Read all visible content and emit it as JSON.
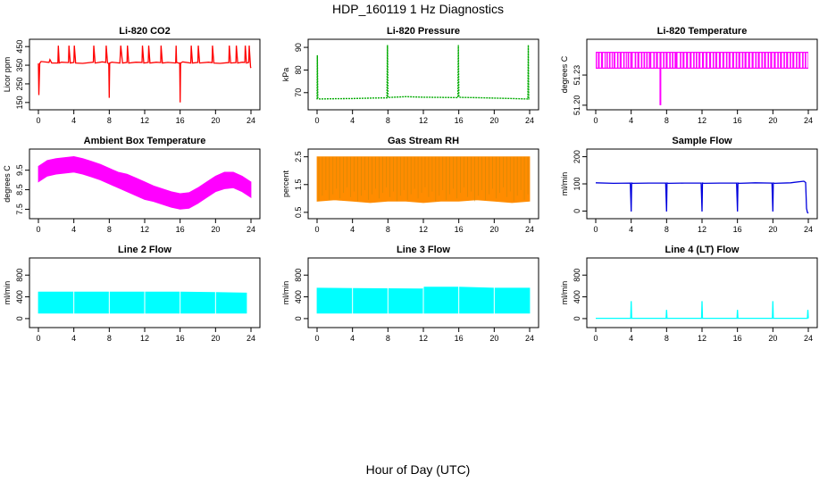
{
  "figure": {
    "title": "HDP_160119  1 Hz Diagnostics",
    "xlabel": "Hour of Day (UTC)"
  },
  "chart_data": [
    {
      "type": "line",
      "title": "Li-820 CO2",
      "ylabel": "Licor ppm",
      "color": "#ff0000",
      "xlim": [
        0,
        24
      ],
      "ylim": [
        130,
        470
      ],
      "x_ticks": [
        0,
        4,
        8,
        12,
        16,
        20,
        24
      ],
      "y_ticks": [
        150,
        250,
        350,
        450
      ],
      "series": [
        {
          "x": [
            0,
            0.05,
            0.15,
            0.3,
            1.2,
            1.3,
            1.5,
            2.2,
            2.25,
            2.35,
            2.6,
            3.4,
            3.45,
            3.6,
            4.0,
            4.05,
            4.2,
            5.0,
            6.2,
            6.25,
            6.4,
            7.2,
            7.6,
            7.65,
            7.8,
            7.9,
            7.95,
            8.0,
            8.05,
            8.3,
            9.2,
            9.3,
            9.5,
            10.0,
            10.05,
            10.2,
            11.0,
            11.7,
            11.75,
            11.9,
            12.4,
            12.45,
            12.6,
            13.3,
            13.8,
            13.85,
            14.0,
            14.6,
            15.5,
            15.55,
            15.6,
            15.8,
            15.95,
            16.0,
            16.05,
            16.3,
            17.2,
            17.25,
            17.4,
            18.0,
            18.05,
            18.2,
            19.2,
            19.6,
            19.65,
            19.8,
            20.5,
            21.5,
            21.55,
            21.7,
            22.3,
            22.35,
            22.5,
            23.0,
            23.3,
            23.35,
            23.5,
            23.75,
            23.8,
            23.95,
            24.0
          ],
          "y": [
            360,
            190,
            360,
            370,
            365,
            380,
            362,
            362,
            455,
            362,
            366,
            364,
            455,
            362,
            365,
            455,
            362,
            360,
            366,
            455,
            362,
            368,
            365,
            455,
            362,
            360,
            360,
            175,
            362,
            366,
            362,
            455,
            362,
            365,
            455,
            362,
            366,
            365,
            455,
            362,
            365,
            455,
            362,
            366,
            364,
            455,
            362,
            365,
            362,
            455,
            365,
            362,
            362,
            150,
            362,
            368,
            362,
            455,
            362,
            365,
            455,
            362,
            366,
            364,
            455,
            362,
            360,
            364,
            455,
            362,
            364,
            455,
            362,
            366,
            365,
            455,
            362,
            365,
            455,
            340,
            335
          ]
        }
      ]
    },
    {
      "type": "line",
      "title": "Li-820 Pressure",
      "ylabel": "kPa",
      "color": "#00aa00",
      "xlim": [
        0,
        24
      ],
      "ylim": [
        64,
        92
      ],
      "x_ticks": [
        0,
        4,
        8,
        12,
        16,
        20,
        24
      ],
      "y_ticks": [
        70,
        80,
        90
      ],
      "series": [
        {
          "x": [
            0,
            0.03,
            0.08,
            0.3,
            2,
            4,
            6,
            7.9,
            7.95,
            8.0,
            8.05,
            8.2,
            10,
            12,
            14,
            15.9,
            15.95,
            16.0,
            16.05,
            16.2,
            18,
            20,
            22,
            23.8,
            23.85,
            23.9,
            24
          ],
          "y": [
            67,
            86.5,
            67.5,
            67.2,
            67.3,
            67.4,
            67.6,
            67.7,
            91,
            68,
            67.8,
            67.9,
            68.2,
            68.0,
            67.9,
            67.8,
            91,
            68.2,
            68.1,
            67.9,
            67.8,
            67.6,
            67.4,
            67.2,
            91,
            67.2,
            67.1
          ]
        }
      ]
    },
    {
      "type": "line",
      "title": "Li-820 Temperature",
      "ylabel": "degrees C",
      "color": "#ff00ff",
      "xlim": [
        0,
        24
      ],
      "ylim": [
        51.199,
        51.262
      ],
      "x_ticks": [
        0,
        4,
        8,
        12,
        16,
        20,
        24
      ],
      "y_ticks": [
        51.2,
        51.23
      ],
      "y_tick_labels": [
        "51.20",
        "51.23"
      ],
      "levels": [
        51.2368,
        51.2526
      ],
      "dip": {
        "x": 7.3,
        "y": 51.2
      },
      "switch_hours": [
        0.0,
        0.25,
        0.6,
        1.0,
        1.2,
        1.5,
        1.8,
        2.0,
        2.4,
        2.7,
        3.1,
        3.4,
        3.6,
        3.9,
        4.4,
        4.7,
        5.1,
        5.4,
        5.7,
        6.0,
        6.5,
        6.8,
        7.2,
        7.6,
        7.9,
        8.3,
        8.6,
        8.9,
        9.5,
        9.8,
        10.2,
        10.6,
        11.0,
        11.3,
        11.6,
        12.0,
        12.4,
        12.8,
        13.2,
        13.5,
        13.9,
        14.3,
        14.7,
        15.0,
        15.4,
        15.8,
        16.1,
        16.5,
        16.8,
        17.2,
        17.6,
        18.0,
        18.3,
        18.7,
        19.0,
        19.4,
        19.7,
        20.1,
        20.5,
        20.8,
        21.2,
        21.5,
        21.9,
        22.2,
        22.6,
        22.9,
        23.3,
        23.6,
        23.9
      ]
    },
    {
      "type": "area",
      "title": "Ambient Box Temperature",
      "ylabel": "degrees C",
      "color": "#ff00ff",
      "xlim": [
        0,
        24
      ],
      "ylim": [
        7.2,
        10.4
      ],
      "x_ticks": [
        0,
        4,
        8,
        12,
        16,
        20,
        24
      ],
      "y_ticks": [
        7.5,
        8.5,
        9.5
      ],
      "series": [
        {
          "x": [
            0,
            1,
            2,
            3,
            4,
            5,
            6,
            7,
            8,
            9,
            10,
            11,
            12,
            13,
            14,
            15,
            16,
            17,
            18,
            19,
            20,
            21,
            22,
            23,
            24
          ],
          "upper": [
            9.7,
            10.0,
            10.1,
            10.15,
            10.2,
            10.1,
            9.95,
            9.8,
            9.6,
            9.4,
            9.3,
            9.1,
            8.9,
            8.7,
            8.55,
            8.4,
            8.3,
            8.35,
            8.6,
            8.9,
            9.2,
            9.4,
            9.4,
            9.2,
            8.9
          ],
          "lower": [
            8.9,
            9.2,
            9.3,
            9.35,
            9.4,
            9.3,
            9.15,
            9.0,
            8.8,
            8.6,
            8.4,
            8.2,
            8.0,
            7.9,
            7.75,
            7.6,
            7.5,
            7.55,
            7.8,
            8.1,
            8.4,
            8.55,
            8.6,
            8.4,
            8.1
          ]
        }
      ]
    },
    {
      "type": "area",
      "title": "Gas Stream RH",
      "ylabel": "percent",
      "color": "#ff8c00",
      "xlim": [
        0,
        24
      ],
      "ylim": [
        0.4,
        2.65
      ],
      "x_ticks": [
        0,
        4,
        8,
        12,
        16,
        20,
        24
      ],
      "y_ticks": [
        0.5,
        1.5,
        2.5
      ],
      "series": [
        {
          "x": [
            0,
            2,
            4,
            6,
            8,
            10,
            12,
            14,
            16,
            18,
            20,
            22,
            24
          ],
          "upper": [
            2.5,
            2.5,
            2.5,
            2.5,
            2.5,
            2.5,
            2.5,
            2.5,
            2.5,
            2.5,
            2.5,
            2.5,
            2.5
          ],
          "lower": [
            0.9,
            0.95,
            0.9,
            0.85,
            0.9,
            0.9,
            0.85,
            0.9,
            0.9,
            0.95,
            0.9,
            0.85,
            0.9
          ]
        }
      ]
    },
    {
      "type": "line",
      "title": "Sample Flow",
      "ylabel": "ml/min",
      "color": "#0000dd",
      "xlim": [
        0,
        24
      ],
      "ylim": [
        -15,
        215
      ],
      "x_ticks": [
        0,
        4,
        8,
        12,
        16,
        20,
        24
      ],
      "y_ticks": [
        0,
        100,
        200
      ],
      "series": [
        {
          "x": [
            0,
            2,
            3.9,
            4.0,
            4.05,
            4.2,
            6,
            7.9,
            8.0,
            8.05,
            8.2,
            10,
            11.9,
            12.0,
            12.05,
            12.2,
            14,
            15.9,
            16.0,
            16.05,
            16.2,
            18,
            19.9,
            20.0,
            20.05,
            20.2,
            22,
            23.5,
            23.7,
            23.8,
            23.9,
            24.0
          ],
          "y": [
            104,
            102,
            103,
            -2,
            103,
            102,
            103,
            103,
            -2,
            103,
            102,
            103,
            103,
            -2,
            103,
            102,
            103,
            103,
            -2,
            103,
            102,
            104,
            103,
            -2,
            103,
            102,
            104,
            110,
            105,
            10,
            -5,
            -8
          ]
        }
      ]
    },
    {
      "type": "area",
      "title": "Line 2 Flow",
      "ylabel": "ml/min",
      "color": "#00ffff",
      "xlim": [
        0,
        24
      ],
      "ylim": [
        -100,
        1050
      ],
      "x_ticks": [
        0,
        4,
        8,
        12,
        16,
        20,
        24
      ],
      "y_ticks": [
        0,
        400,
        800
      ],
      "series": [
        {
          "x": [
            0,
            4,
            8,
            12,
            16,
            20,
            23.5
          ],
          "upper": [
            490,
            490,
            490,
            490,
            490,
            480,
            470
          ],
          "lower": [
            100,
            100,
            100,
            100,
            100,
            100,
            100
          ]
        }
      ],
      "gaps": [
        4,
        8,
        12,
        16,
        20
      ]
    },
    {
      "type": "area",
      "title": "Line 3 Flow",
      "ylabel": "ml/min",
      "color": "#00ffff",
      "xlim": [
        0,
        24
      ],
      "ylim": [
        -100,
        1050
      ],
      "x_ticks": [
        0,
        4,
        8,
        12,
        16,
        20,
        24
      ],
      "y_ticks": [
        0,
        400,
        800
      ],
      "series": [
        {
          "x": [
            0,
            4,
            8,
            11.9,
            12.1,
            16,
            20,
            24
          ],
          "upper": [
            560,
            555,
            550,
            548,
            580,
            580,
            560,
            560
          ],
          "lower": [
            100,
            100,
            100,
            100,
            100,
            100,
            100,
            100
          ]
        }
      ],
      "gaps": [
        4,
        8,
        12,
        16,
        20
      ]
    },
    {
      "type": "line",
      "title": "Line 4 (LT) Flow",
      "ylabel": "ml/min",
      "color": "#00ffff",
      "xlim": [
        0,
        24
      ],
      "ylim": [
        -100,
        1050
      ],
      "x_ticks": [
        0,
        4,
        8,
        12,
        16,
        20,
        24
      ],
      "y_ticks": [
        0,
        400,
        800
      ],
      "series": [
        {
          "x": [
            0,
            3.95,
            4.0,
            4.05,
            7.95,
            8.0,
            8.05,
            11.95,
            12.0,
            12.05,
            15.95,
            16.0,
            16.05,
            19.95,
            20.0,
            20.05,
            23.9,
            23.95,
            24.0
          ],
          "y": [
            5,
            5,
            320,
            5,
            5,
            160,
            5,
            5,
            320,
            5,
            5,
            160,
            5,
            5,
            320,
            5,
            5,
            160,
            5
          ]
        }
      ]
    }
  ]
}
